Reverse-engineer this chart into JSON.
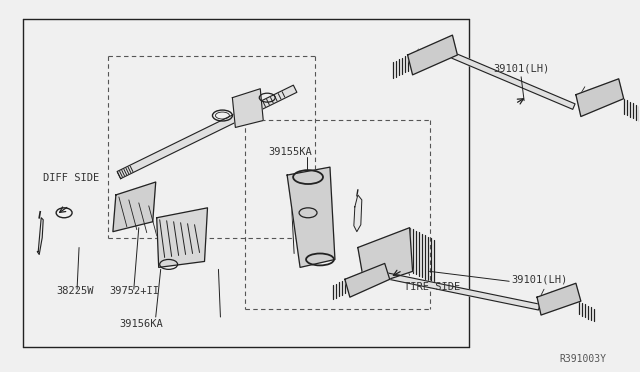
{
  "bg_color": "#f0f0f0",
  "border_color": "#333333",
  "line_color": "#222222",
  "text_color": "#333333",
  "title_ref": "R391003Y",
  "labels": {
    "diff_side": "DIFF SIDE",
    "tire_side": "TIRE SIDE",
    "part1_top": "39101(LH)",
    "part2_bottom": "39101(LH)",
    "part3": "39155KA",
    "part4": "39156KA",
    "part5": "39752+II",
    "part6": "38225W"
  }
}
